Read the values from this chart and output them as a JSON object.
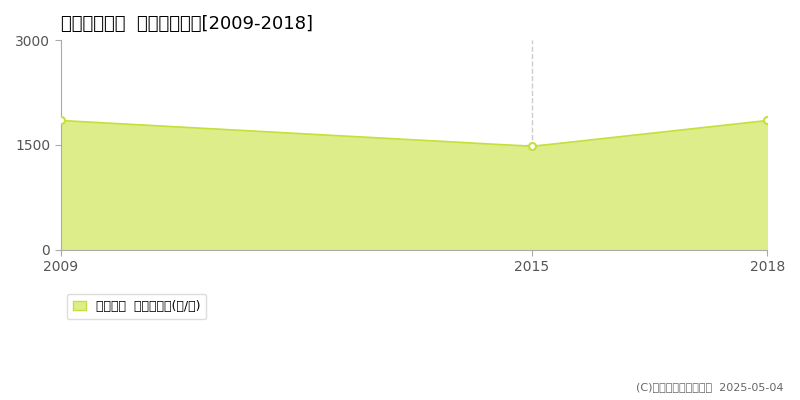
{
  "title": "長井市勧進代  農地価格推移[2009-2018]",
  "years": [
    2009,
    2015,
    2018
  ],
  "values": [
    1850,
    1480,
    1850
  ],
  "ylim": [
    0,
    3000
  ],
  "xlim": [
    2009,
    2018
  ],
  "yticks": [
    0,
    1500,
    3000
  ],
  "xticks": [
    2009,
    2015,
    2018
  ],
  "line_color": "#c8de3a",
  "fill_color": "#dced8a",
  "marker_color": "#ffffff",
  "marker_edge_color": "#c8de3a",
  "vline_x": 2015,
  "hline_y": 1500,
  "vline_color": "#cccccc",
  "hline_color": "#cccccc",
  "spine_color": "#aaaaaa",
  "background_color": "#ffffff",
  "legend_label": "農地価格  平均坪単価(円/坪)",
  "copyright_text": "(C)土地価格ドットコム  2025-05-04",
  "title_fontsize": 13,
  "tick_fontsize": 10,
  "legend_fontsize": 9,
  "copyright_fontsize": 8
}
